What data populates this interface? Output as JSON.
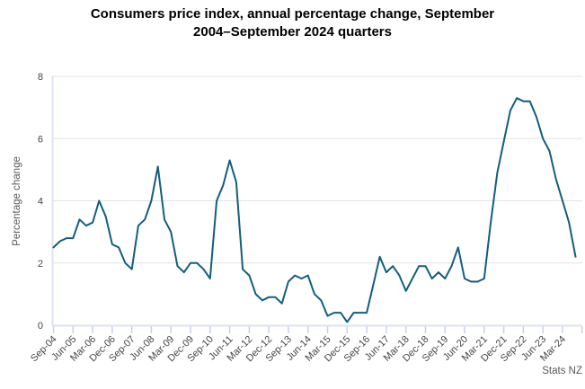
{
  "header": {
    "title": "Consumers price index, annual percentage change, September 2004–September 2024 quarters",
    "title_lines": [
      "Consumers price index, annual percentage change, September",
      "2004–September 2024 quarters"
    ]
  },
  "source_label": "Stats NZ",
  "chart_data": {
    "type": "line",
    "title": "Consumers price index, annual percentage change, September 2004–September 2024 quarters",
    "xlabel": "",
    "ylabel": "Percentage change",
    "ylim": [
      0,
      8
    ],
    "yticks": [
      0,
      2,
      4,
      6,
      8
    ],
    "grid": true,
    "legend": "none",
    "x_tick_labels": [
      "Sep-04",
      "Jun-05",
      "Mar-06",
      "Dec-06",
      "Sep-07",
      "Jun-08",
      "Mar-09",
      "Dec-09",
      "Sep-10",
      "Jun-11",
      "Mar-12",
      "Dec-12",
      "Sep-13",
      "Jun-14",
      "Mar-15",
      "Dec-15",
      "Sep-16",
      "Jun-17",
      "Mar-18",
      "Dec-18",
      "Sep-19",
      "Jun-20",
      "Mar-21",
      "Dec-21",
      "Sep-22",
      "Jun-23",
      "Mar-24"
    ],
    "x": [
      "Sep-04",
      "Dec-04",
      "Mar-05",
      "Jun-05",
      "Sep-05",
      "Dec-05",
      "Mar-06",
      "Jun-06",
      "Sep-06",
      "Dec-06",
      "Mar-07",
      "Jun-07",
      "Sep-07",
      "Dec-07",
      "Mar-08",
      "Jun-08",
      "Sep-08",
      "Dec-08",
      "Mar-09",
      "Jun-09",
      "Sep-09",
      "Dec-09",
      "Mar-10",
      "Jun-10",
      "Sep-10",
      "Dec-10",
      "Mar-11",
      "Jun-11",
      "Sep-11",
      "Dec-11",
      "Mar-12",
      "Jun-12",
      "Sep-12",
      "Dec-12",
      "Mar-13",
      "Jun-13",
      "Sep-13",
      "Dec-13",
      "Mar-14",
      "Jun-14",
      "Sep-14",
      "Dec-14",
      "Mar-15",
      "Jun-15",
      "Sep-15",
      "Dec-15",
      "Mar-16",
      "Jun-16",
      "Sep-16",
      "Dec-16",
      "Mar-17",
      "Jun-17",
      "Sep-17",
      "Dec-17",
      "Mar-18",
      "Jun-18",
      "Sep-18",
      "Dec-18",
      "Mar-19",
      "Jun-19",
      "Sep-19",
      "Dec-19",
      "Mar-20",
      "Jun-20",
      "Sep-20",
      "Dec-20",
      "Mar-21",
      "Jun-21",
      "Sep-21",
      "Dec-21",
      "Mar-22",
      "Jun-22",
      "Sep-22",
      "Dec-22",
      "Mar-23",
      "Jun-23",
      "Sep-23",
      "Dec-23",
      "Mar-24",
      "Jun-24",
      "Sep-24"
    ],
    "values": [
      2.5,
      2.7,
      2.8,
      2.8,
      3.4,
      3.2,
      3.3,
      4.0,
      3.5,
      2.6,
      2.5,
      2.0,
      1.8,
      3.2,
      3.4,
      4.0,
      5.1,
      3.4,
      3.0,
      1.9,
      1.7,
      2.0,
      2.0,
      1.8,
      1.5,
      4.0,
      4.5,
      5.3,
      4.6,
      1.8,
      1.6,
      1.0,
      0.8,
      0.9,
      0.9,
      0.7,
      1.4,
      1.6,
      1.5,
      1.6,
      1.0,
      0.8,
      0.3,
      0.4,
      0.4,
      0.1,
      0.4,
      0.4,
      0.4,
      1.3,
      2.2,
      1.7,
      1.9,
      1.6,
      1.1,
      1.5,
      1.9,
      1.9,
      1.5,
      1.7,
      1.5,
      1.9,
      2.5,
      1.5,
      1.4,
      1.4,
      1.5,
      3.3,
      4.9,
      5.9,
      6.9,
      7.3,
      7.2,
      7.2,
      6.7,
      6.0,
      5.6,
      4.7,
      4.0,
      3.3,
      2.2
    ],
    "colors": {
      "line": "#135e7d",
      "grid": "#e3e3e3",
      "axis": "#dde3f2",
      "tick": "#c7d1ea",
      "tick_label": "#454545",
      "muted_label": "#595959",
      "title": "#000000",
      "background": "#ffffff"
    }
  }
}
